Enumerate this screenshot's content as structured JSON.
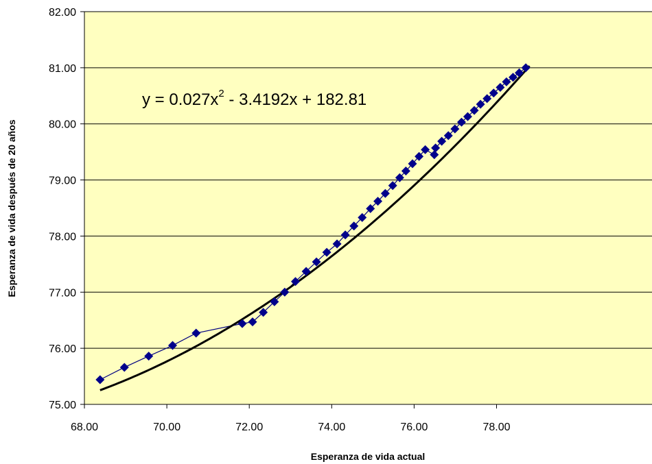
{
  "chart_data": {
    "type": "scatter",
    "xlabel": "Esperanza de vida actual",
    "ylabel": "Esperanza de vida después de 20 años",
    "xlim": [
      68,
      78.8
    ],
    "ylim": [
      75,
      82
    ],
    "x_ticks": [
      "68.00",
      "70.00",
      "72.00",
      "74.00",
      "76.00",
      "78.00"
    ],
    "y_ticks": [
      "75.00",
      "76.00",
      "77.00",
      "78.00",
      "79.00",
      "80.00",
      "81.00",
      "82.00"
    ],
    "grid": "horizontal",
    "legend": "none",
    "annotation": {
      "prefix": "y = 0.027x",
      "exponent": "2",
      "suffix": " - 3.4192x + 182.81"
    },
    "series": [
      {
        "marker": "diamond",
        "line": "thin",
        "x": [
          68.38,
          68.97,
          69.56,
          70.14,
          70.71,
          71.83,
          72.08,
          72.34,
          72.61,
          72.86,
          73.12,
          73.38,
          73.63,
          73.88,
          74.13,
          74.33,
          74.54,
          74.74,
          74.94,
          75.12,
          75.3,
          75.48,
          75.65,
          75.8,
          75.96,
          76.12,
          76.27,
          76.49,
          76.52,
          76.67,
          76.83,
          76.99,
          77.15,
          77.3,
          77.46,
          77.61,
          77.77,
          77.93,
          78.09,
          78.24,
          78.4,
          78.55,
          78.71
        ],
        "y": [
          75.44,
          75.66,
          75.86,
          76.05,
          76.27,
          76.44,
          76.47,
          76.64,
          76.83,
          77.0,
          77.19,
          77.37,
          77.54,
          77.71,
          77.86,
          78.02,
          78.18,
          78.33,
          78.49,
          78.62,
          78.76,
          78.9,
          79.04,
          79.16,
          79.29,
          79.42,
          79.54,
          79.45,
          79.57,
          79.69,
          79.79,
          79.91,
          80.03,
          80.13,
          80.24,
          80.35,
          80.45,
          80.55,
          80.65,
          80.75,
          80.83,
          80.91,
          81.0
        ]
      },
      {
        "type": "trendline",
        "fit": "polynomial",
        "coefficients": [
          0.027,
          -3.4192,
          182.81
        ]
      }
    ]
  },
  "colors": {
    "plot_background": "#FFFFC0",
    "series_line": "#000080",
    "marker": "#00008B",
    "trendline": "#000000",
    "gridline": "#000000",
    "axis": "#000000"
  }
}
